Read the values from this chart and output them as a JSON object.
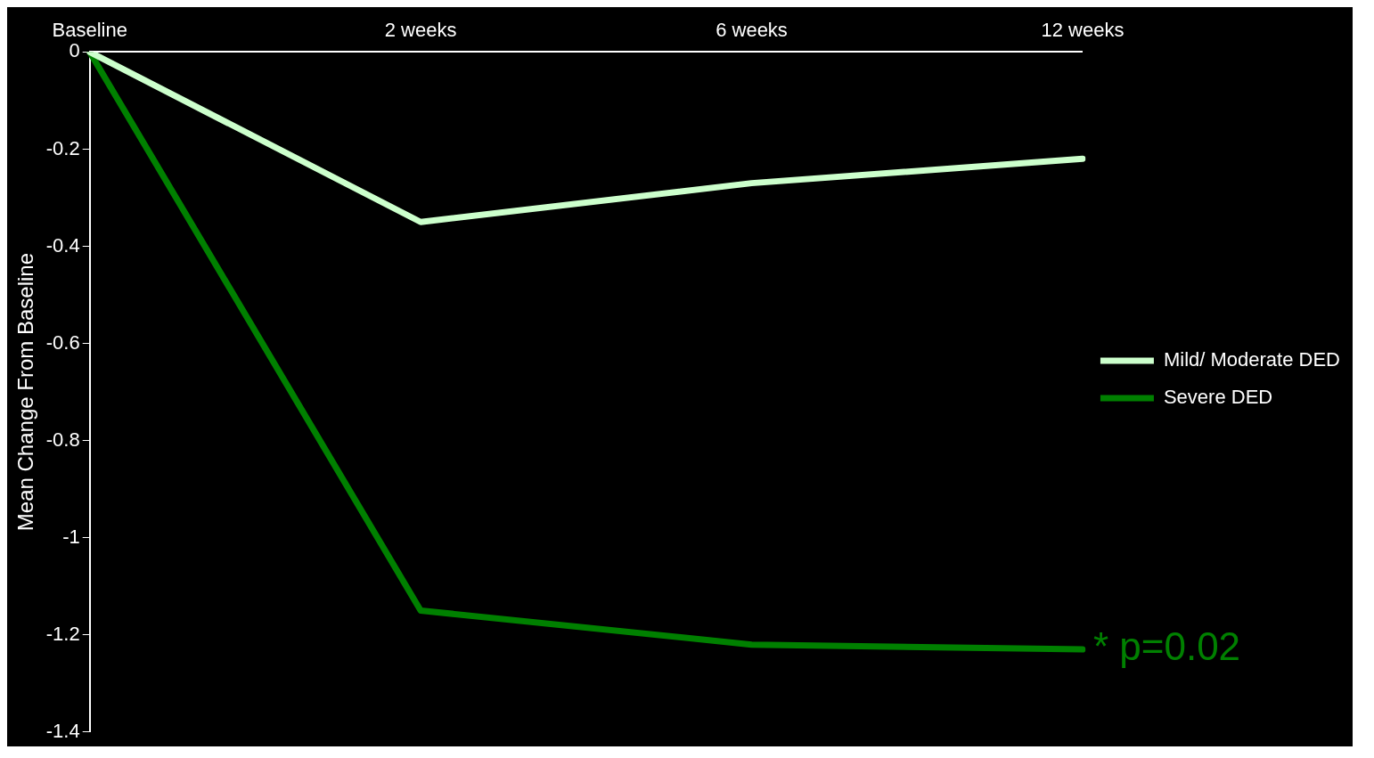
{
  "chart_data": {
    "type": "line",
    "ylabel": "Mean Change From Baseline",
    "categories": [
      "Baseline",
      "2 weeks",
      "6 weeks",
      "12 weeks"
    ],
    "series": [
      {
        "name": "Mild/ Moderate DED",
        "color": "#ccffcc",
        "values": [
          0,
          -0.35,
          -0.27,
          -0.22
        ]
      },
      {
        "name": "Severe DED",
        "color": "#008000",
        "values": [
          0,
          -1.15,
          -1.22,
          -1.23
        ]
      }
    ],
    "ylim": [
      -1.4,
      0
    ],
    "yticks": [
      0,
      -0.2,
      -0.4,
      -0.6,
      -0.8,
      -1,
      -1.2,
      -1.4
    ],
    "grid": false,
    "legend": "right",
    "marker": "none",
    "line_style": "solid",
    "annotations": [
      {
        "text": "* p=0.02",
        "x": "12 weeks",
        "y": -1.23
      }
    ]
  }
}
